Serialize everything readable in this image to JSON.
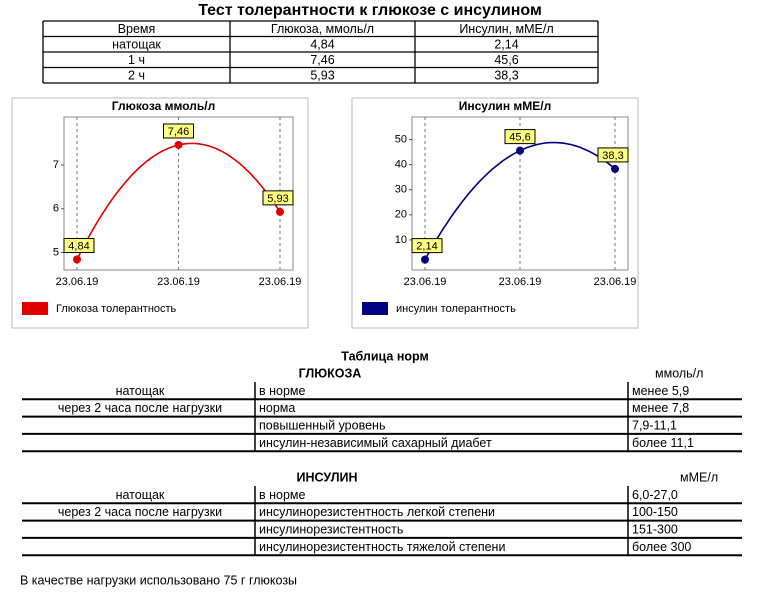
{
  "title": "Тест толерантности к глюкозе с инсулином",
  "table": {
    "header": [
      "Время",
      "Глюкоза, ммоль/л",
      "Инсулин, мМЕ/л"
    ],
    "rows": [
      [
        "натощак",
        "4,84",
        "2,14"
      ],
      [
        "1 ч",
        "7,46",
        "45,6"
      ],
      [
        "2 ч",
        "5,93",
        "38,3"
      ]
    ]
  },
  "chart_data": [
    {
      "type": "line",
      "title": "Глюкоза ммоль/л",
      "categories": [
        "23.06.19",
        "23.06.19",
        "23.06.19"
      ],
      "series": [
        {
          "name": "Глюкоза толерантность",
          "color": "#e00000",
          "values": [
            4.84,
            7.46,
            5.93
          ],
          "value_labels": [
            "4,84",
            "7,46",
            "5,93"
          ]
        }
      ],
      "ylim": [
        4.6,
        8.1
      ],
      "yticks": [
        5,
        6,
        7
      ],
      "grid": true
    },
    {
      "type": "line",
      "title": "Инсулин мМЕ/л",
      "categories": [
        "23.06.19",
        "23.06.19",
        "23.06.19"
      ],
      "series": [
        {
          "name": "инсулин толерантность",
          "color": "#000080",
          "values": [
            2.14,
            45.6,
            38.3
          ],
          "value_labels": [
            "2,14",
            "45,6",
            "38,3"
          ]
        }
      ],
      "ylim": [
        -2,
        59
      ],
      "yticks": [
        10,
        20,
        30,
        40,
        50
      ],
      "grid": true
    }
  ],
  "norms": {
    "title": "Таблица норм",
    "sections": [
      {
        "name": "ГЛЮКОЗА",
        "unit": "ммоль/л",
        "rows": [
          [
            "натощак",
            "в норме",
            "менее 5,9"
          ],
          [
            "через 2 часа после нагрузки",
            "норма",
            "менее 7,8"
          ],
          [
            null,
            "повышенный уровень",
            "7,9-11,1"
          ],
          [
            null,
            "инсулин-независимый сахарный диабет",
            "более 11,1"
          ]
        ]
      },
      {
        "name": "ИНСУЛИН",
        "unit": "мМЕ/л",
        "rows": [
          [
            "натощак",
            "в норме",
            "6,0-27,0"
          ],
          [
            "через 2 часа после нагрузки",
            "инсулинорезистентность легкой степени",
            "100-150"
          ],
          [
            null,
            "инсулинорезистентность",
            "151-300"
          ],
          [
            null,
            "инсулинорезистентность тяжелой степени",
            "более 300"
          ]
        ]
      }
    ]
  },
  "footer": "В качестве нагрузки использовано 75 г глюкозы"
}
